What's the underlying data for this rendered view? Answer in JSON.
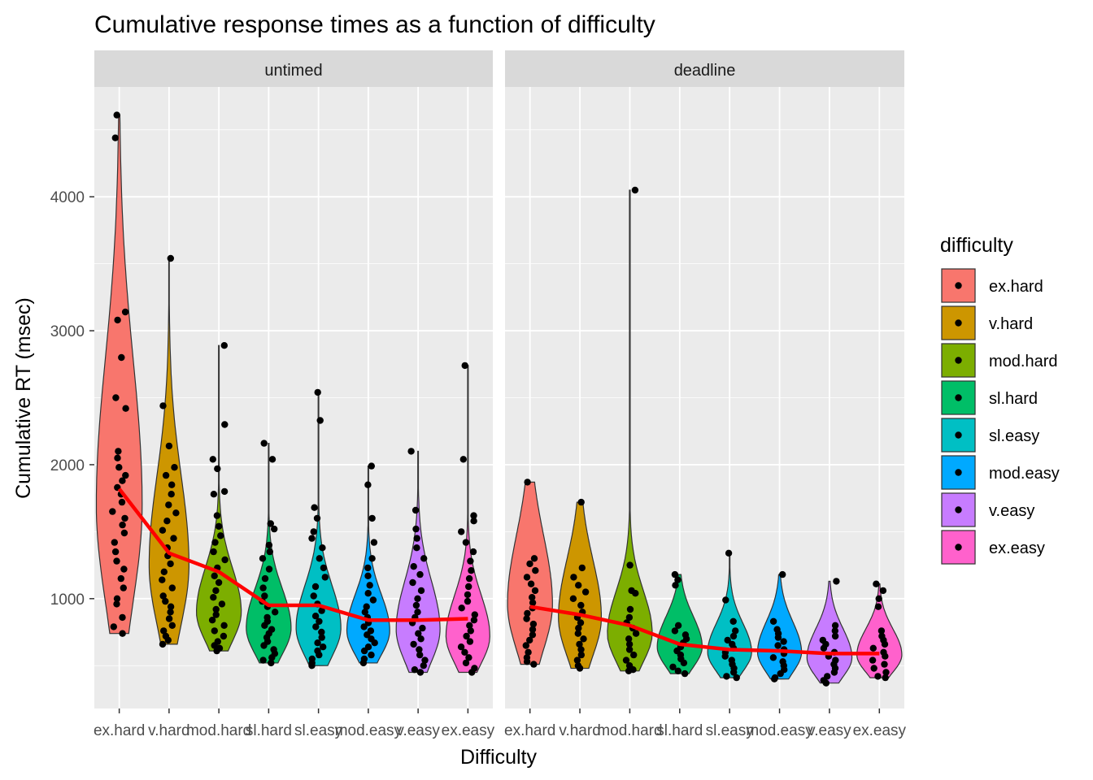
{
  "chart_data": {
    "type": "violin",
    "title": "Cumulative response times as a function of difficulty",
    "xlabel": "Difficulty",
    "ylabel": "Cumulative RT (msec)",
    "ylim": [
      180,
      4820
    ],
    "y_ticks": [
      1000,
      2000,
      3000,
      4000
    ],
    "categories": [
      "ex.hard",
      "v.hard",
      "mod.hard",
      "sl.hard",
      "sl.easy",
      "mod.easy",
      "v.easy",
      "ex.easy"
    ],
    "legend": {
      "title": "difficulty",
      "position": "right",
      "entries": [
        "ex.hard",
        "v.hard",
        "mod.hard",
        "sl.hard",
        "sl.easy",
        "mod.easy",
        "v.easy",
        "ex.easy"
      ],
      "colors": [
        "#F8766D",
        "#CD9600",
        "#7CAE00",
        "#00BE67",
        "#00BFC4",
        "#00A9FF",
        "#C77CFF",
        "#FF61CC"
      ]
    },
    "summary_line_color": "#FF0000",
    "panels": [
      {
        "name": "untimed",
        "mean_rt": [
          1820,
          1340,
          1200,
          950,
          950,
          840,
          840,
          850
        ],
        "groups": [
          {
            "min": 740,
            "max": 4610,
            "mode": 1700,
            "width": 0.46,
            "points": [
              4610,
              4440,
              3140,
              3080,
              2800,
              2500,
              2420,
              2100,
              2050,
              1980,
              1920,
              1880,
              1830,
              1780,
              1720,
              1650,
              1600,
              1550,
              1490,
              1420,
              1350,
              1280,
              1220,
              1150,
              1080,
              1000,
              960,
              860,
              790,
              740
            ]
          },
          {
            "min": 660,
            "max": 3540,
            "mode": 1250,
            "width": 0.4,
            "points": [
              3540,
              2440,
              2140,
              1980,
              1920,
              1850,
              1780,
              1700,
              1640,
              1580,
              1510,
              1450,
              1380,
              1320,
              1260,
              1200,
              1140,
              1080,
              1020,
              980,
              940,
              900,
              850,
              800,
              760,
              720,
              690,
              660
            ]
          },
          {
            "min": 610,
            "max": 2890,
            "mode": 900,
            "width": 0.45,
            "points": [
              2890,
              2300,
              2040,
              1970,
              1800,
              1780,
              1620,
              1540,
              1470,
              1420,
              1350,
              1290,
              1230,
              1170,
              1120,
              1060,
              1010,
              960,
              920,
              880,
              840,
              800,
              760,
              720,
              680,
              650,
              630,
              610
            ]
          },
          {
            "min": 520,
            "max": 2160,
            "mode": 780,
            "width": 0.45,
            "points": [
              2160,
              2040,
              1560,
              1520,
              1400,
              1350,
              1300,
              1220,
              1150,
              1080,
              1020,
              980,
              940,
              900,
              860,
              830,
              800,
              770,
              740,
              710,
              680,
              650,
              620,
              590,
              560,
              540,
              520
            ]
          },
          {
            "min": 500,
            "max": 2540,
            "mode": 780,
            "width": 0.45,
            "points": [
              2540,
              2330,
              1680,
              1600,
              1500,
              1450,
              1380,
              1300,
              1230,
              1160,
              1090,
              1020,
              960,
              910,
              870,
              830,
              790,
              750,
              710,
              670,
              640,
              610,
              580,
              550,
              520,
              500
            ]
          },
          {
            "min": 520,
            "max": 1990,
            "mode": 760,
            "width": 0.43,
            "points": [
              1990,
              1850,
              1600,
              1420,
              1300,
              1230,
              1170,
              1100,
              1040,
              990,
              940,
              900,
              860,
              820,
              790,
              760,
              730,
              700,
              670,
              640,
              610,
              580,
              550,
              520
            ]
          },
          {
            "min": 450,
            "max": 2100,
            "mode": 770,
            "width": 0.44,
            "points": [
              2100,
              1660,
              1520,
              1450,
              1380,
              1300,
              1240,
              1180,
              1120,
              1060,
              1000,
              950,
              900,
              860,
              820,
              780,
              740,
              700,
              660,
              620,
              580,
              540,
              500,
              470,
              450
            ]
          },
          {
            "min": 450,
            "max": 2740,
            "mode": 720,
            "width": 0.44,
            "points": [
              2740,
              2040,
              1620,
              1580,
              1500,
              1420,
              1350,
              1280,
              1210,
              1150,
              1090,
              1030,
              980,
              930,
              880,
              840,
              800,
              760,
              720,
              680,
              640,
              600,
              560,
              520,
              480,
              450
            ]
          }
        ]
      },
      {
        "name": "deadline",
        "mean_rt": [
          940,
          880,
          800,
          660,
          620,
          610,
          590,
          590
        ],
        "groups": [
          {
            "min": 510,
            "max": 1870,
            "mode": 960,
            "width": 0.45,
            "points": [
              1870,
              1300,
              1260,
              1210,
              1160,
              1110,
              1060,
              1010,
              970,
              930,
              890,
              850,
              810,
              770,
              730,
              690,
              650,
              600,
              560,
              530,
              510
            ]
          },
          {
            "min": 480,
            "max": 1720,
            "mode": 860,
            "width": 0.43,
            "points": [
              1720,
              1230,
              1160,
              1100,
              1050,
              1000,
              950,
              900,
              860,
              820,
              780,
              740,
              700,
              660,
              620,
              580,
              540,
              500,
              480
            ]
          },
          {
            "min": 460,
            "max": 4050,
            "mode": 740,
            "width": 0.45,
            "points": [
              4050,
              1250,
              1060,
              1040,
              920,
              860,
              820,
              780,
              740,
              700,
              660,
              620,
              580,
              540,
              500,
              470,
              460
            ]
          },
          {
            "min": 440,
            "max": 1180,
            "mode": 640,
            "width": 0.45,
            "points": [
              1180,
              1140,
              1100,
              800,
              760,
              730,
              700,
              670,
              640,
              610,
              580,
              550,
              520,
              490,
              460,
              440
            ]
          },
          {
            "min": 410,
            "max": 1340,
            "mode": 600,
            "width": 0.44,
            "points": [
              1340,
              990,
              830,
              760,
              720,
              690,
              660,
              630,
              600,
              570,
              540,
              510,
              480,
              450,
              420,
              410
            ]
          },
          {
            "min": 400,
            "max": 1180,
            "mode": 600,
            "width": 0.44,
            "points": [
              1180,
              830,
              770,
              740,
              710,
              680,
              650,
              620,
              590,
              560,
              530,
              500,
              470,
              440,
              410,
              400
            ]
          },
          {
            "min": 370,
            "max": 1130,
            "mode": 560,
            "width": 0.45,
            "points": [
              1130,
              800,
              760,
              720,
              690,
              660,
              630,
              600,
              570,
              540,
              510,
              480,
              450,
              420,
              390,
              370
            ]
          },
          {
            "min": 410,
            "max": 1110,
            "mode": 580,
            "width": 0.45,
            "points": [
              1110,
              1060,
              1000,
              940,
              760,
              720,
              690,
              660,
              630,
              600,
              570,
              540,
              510,
              480,
              450,
              420,
              410
            ]
          }
        ]
      }
    ]
  }
}
